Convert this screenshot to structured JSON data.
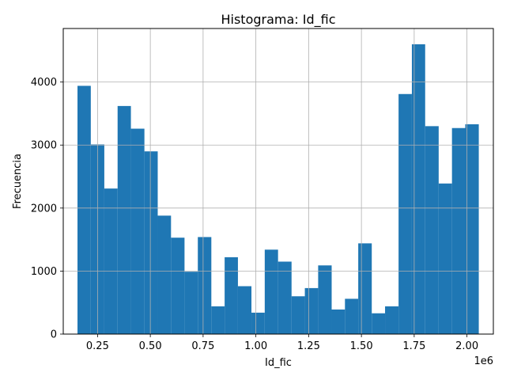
{
  "chart_data": {
    "type": "bar",
    "title": "Histograma: Id_fic",
    "xlabel": "Id_fic",
    "ylabel": "Frecuencia",
    "offset_text": "1e6",
    "x_scale_factor": 1000000,
    "grid": true,
    "bar_color": "#1f77b4",
    "xlim": [
      0.0875,
      2.125
    ],
    "ylim": [
      0,
      4850
    ],
    "xticks": [
      0.25,
      0.5,
      0.75,
      1.0,
      1.25,
      1.5,
      1.75,
      2.0
    ],
    "xtick_labels": [
      "0.25",
      "0.50",
      "0.75",
      "1.00",
      "1.25",
      "1.50",
      "1.75",
      "2.00"
    ],
    "yticks": [
      0,
      1000,
      2000,
      3000,
      4000
    ],
    "ytick_labels": [
      "0",
      "1000",
      "2000",
      "3000",
      "4000"
    ],
    "bin_edges": [
      0.155,
      0.218,
      0.282,
      0.345,
      0.408,
      0.472,
      0.535,
      0.598,
      0.662,
      0.725,
      0.789,
      0.852,
      0.915,
      0.979,
      1.042,
      1.105,
      1.169,
      1.232,
      1.295,
      1.359,
      1.422,
      1.485,
      1.549,
      1.612,
      1.676,
      1.739,
      1.802,
      1.866,
      1.929,
      1.992,
      2.056
    ],
    "values": [
      3940,
      3010,
      2310,
      3620,
      3260,
      2900,
      1880,
      1530,
      990,
      1540,
      440,
      1220,
      760,
      340,
      1340,
      1150,
      600,
      730,
      1090,
      390,
      560,
      1440,
      330,
      440,
      3810,
      4600,
      3300,
      2390,
      3270,
      3330
    ]
  }
}
